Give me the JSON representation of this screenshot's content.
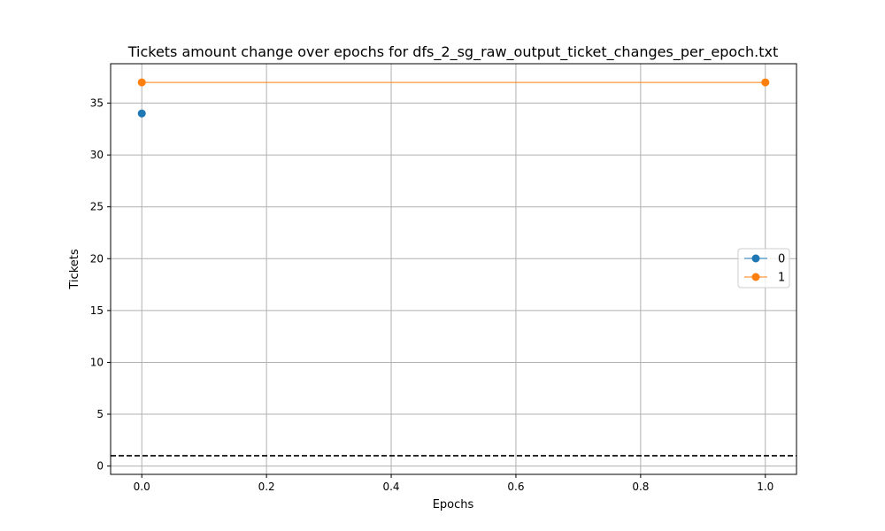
{
  "chart_data": {
    "type": "line",
    "title": "Tickets amount change over epochs for dfs_2_sg_raw_output_ticket_changes_per_epoch.txt",
    "xlabel": "Epochs",
    "ylabel": "Tickets",
    "xlim": [
      -0.05,
      1.05
    ],
    "ylim": [
      -0.8,
      38.8
    ],
    "xticks": [
      0.0,
      0.2,
      0.4,
      0.6,
      0.8,
      1.0
    ],
    "xtick_labels": [
      "0.0",
      "0.2",
      "0.4",
      "0.6",
      "0.8",
      "1.0"
    ],
    "yticks": [
      0,
      5,
      10,
      15,
      20,
      25,
      30,
      35
    ],
    "ytick_labels": [
      "0",
      "5",
      "10",
      "15",
      "20",
      "25",
      "30",
      "35"
    ],
    "grid": true,
    "legend_position": "center-right",
    "series": [
      {
        "name": "0",
        "color": "#1f77b4",
        "marker": "circle",
        "x": [
          0
        ],
        "y": [
          34
        ]
      },
      {
        "name": "1",
        "color": "#ff7f0e",
        "marker": "circle",
        "x": [
          0,
          1
        ],
        "y": [
          37,
          37
        ]
      }
    ],
    "reference_line": {
      "y": 1,
      "color": "#000000",
      "style": "dashed"
    }
  }
}
